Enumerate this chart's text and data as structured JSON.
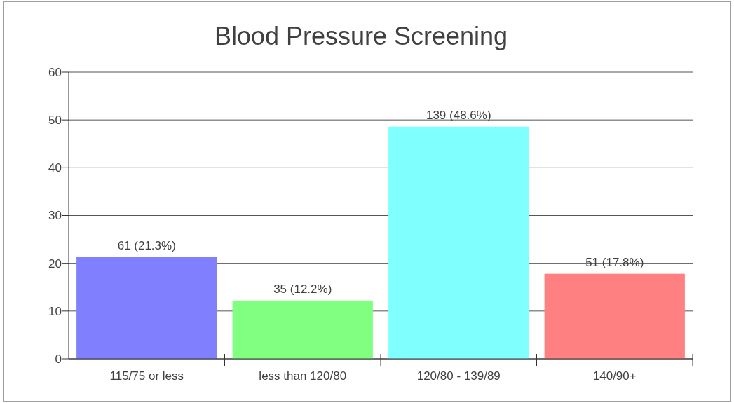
{
  "chart_data": {
    "type": "bar",
    "title": "Blood Pressure Screening",
    "categories": [
      "115/75 or less",
      "less than 120/80",
      "120/80 - 139/89",
      "140/90+"
    ],
    "values": [
      21.3,
      12.2,
      48.6,
      17.8
    ],
    "colors": [
      "#8080ff",
      "#80ff80",
      "#80ffff",
      "#ff8080"
    ],
    "value_labels": [
      "61 (21.3%)",
      "35 (12.2%)",
      "139 (48.6%)",
      "51 (17.8%)"
    ],
    "ylim": [
      0,
      60
    ],
    "yticks": [
      0,
      10,
      20,
      30,
      40,
      50,
      60
    ],
    "grid": "y"
  }
}
